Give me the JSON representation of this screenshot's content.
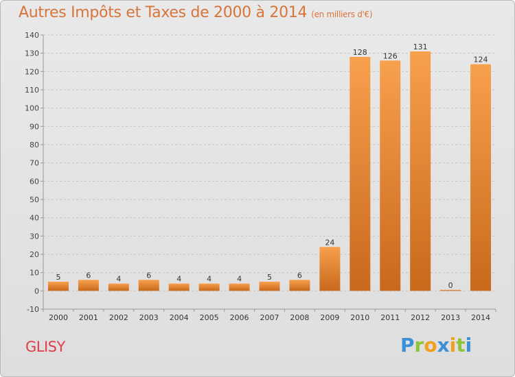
{
  "chart_data": {
    "type": "bar",
    "title": "Autres Impôts et Taxes de 2000 à 2014",
    "subtitle": "(en milliers d'€)",
    "categories": [
      "2000",
      "2001",
      "2002",
      "2003",
      "2004",
      "2005",
      "2006",
      "2007",
      "2008",
      "2009",
      "2010",
      "2011",
      "2012",
      "2013",
      "2014"
    ],
    "values": [
      5,
      6,
      4,
      6,
      4,
      4,
      4,
      5,
      6,
      24,
      128,
      126,
      131,
      0,
      124
    ],
    "ylim": [
      -10,
      140
    ],
    "yticks": [
      -10,
      0,
      10,
      20,
      30,
      40,
      50,
      60,
      70,
      80,
      90,
      100,
      110,
      120,
      130,
      140
    ],
    "grid": "horizontal-dashed",
    "bar_color_light": "#f7a04e",
    "bar_color_dark": "#c8691b"
  },
  "footer": {
    "commune": "GLISY",
    "logo_letters": [
      {
        "ch": "P",
        "color": "#3a8fd6"
      },
      {
        "ch": "r",
        "color": "#8fc43a"
      },
      {
        "ch": "o",
        "color": "#f0a020"
      },
      {
        "ch": "x",
        "color": "#3a8fd6"
      },
      {
        "ch": "i",
        "color": "#f0a020"
      },
      {
        "ch": "t",
        "color": "#8fc43a"
      },
      {
        "ch": "i",
        "color": "#3a8fd6"
      }
    ]
  }
}
